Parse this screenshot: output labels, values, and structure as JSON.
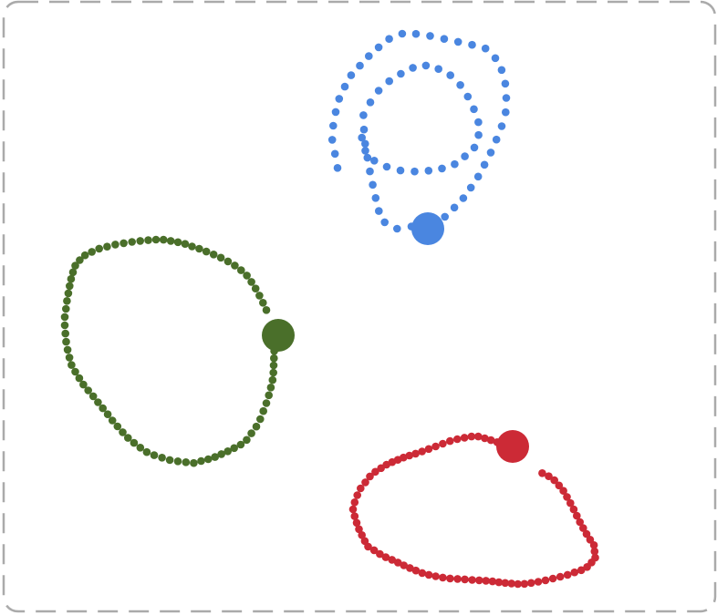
{
  "canvas": {
    "background": "#ffffff",
    "border_color": "#aaaaaa",
    "border_style": "dashed"
  },
  "trails": [
    {
      "id": "blue",
      "color": "#4a86e0",
      "dot_count": 70,
      "head": "end"
    },
    {
      "id": "green",
      "color": "#4a6f2a",
      "dot_count": 86,
      "head": "end"
    },
    {
      "id": "red",
      "color": "#cc2a36",
      "dot_count": 82,
      "head": "end"
    }
  ]
}
